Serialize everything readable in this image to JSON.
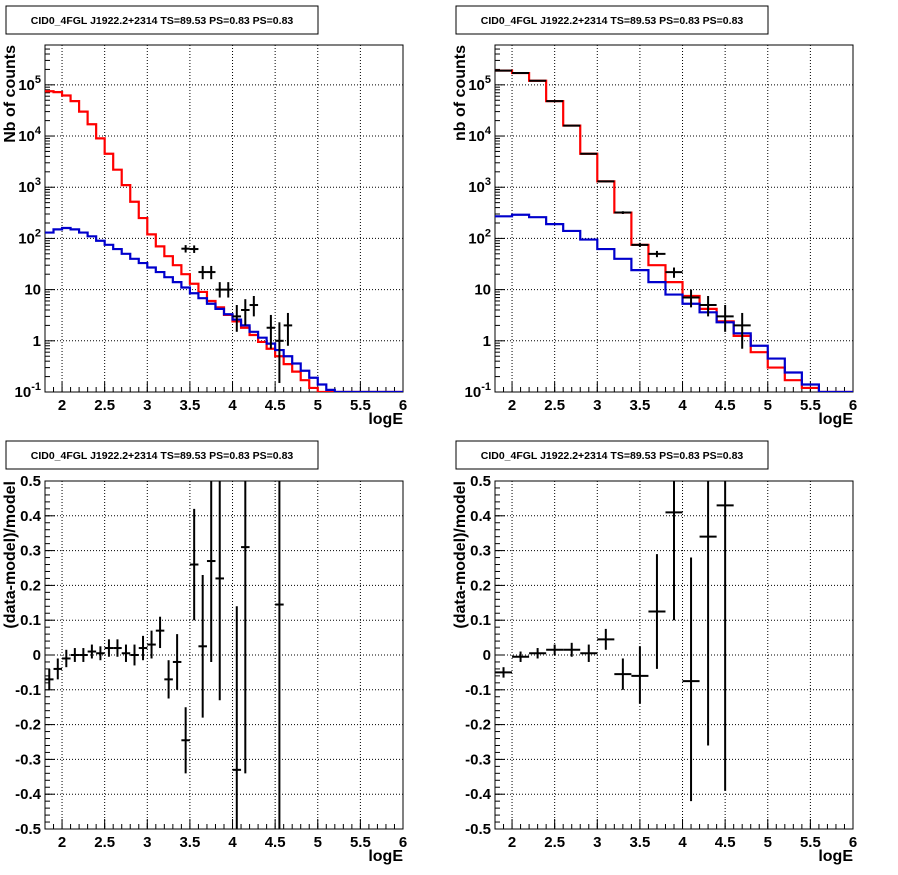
{
  "chart_data": [
    {
      "type": "histogram-errorbar",
      "title": "CID0_4FGL J1922.2+2314 TS=89.53 PS=0.83 PS=0.83",
      "xlabel": "logE",
      "ylabel": "Nb of counts",
      "log_y": true,
      "xlim": [
        1.8,
        6.0
      ],
      "ylim": [
        0.1,
        600000
      ],
      "xticks": [
        "2",
        "2.5",
        "3",
        "3.5",
        "4",
        "4.5",
        "5",
        "5.5",
        "6"
      ],
      "yticks": [
        "10^-1",
        "1",
        "10",
        "10^2",
        "10^3",
        "10^4",
        "10^5"
      ],
      "grid": true,
      "bin_edges": [
        1.8,
        1.9,
        2.0,
        2.1,
        2.2,
        2.3,
        2.4,
        2.5,
        2.6,
        2.7,
        2.8,
        2.9,
        3.0,
        3.1,
        3.2,
        3.3,
        3.4,
        3.5,
        3.6,
        3.7,
        3.8,
        3.9,
        4.0,
        4.1,
        4.2,
        4.3,
        4.4,
        4.5,
        4.6,
        4.7,
        4.8,
        4.9,
        5.0,
        5.1,
        5.2,
        5.3,
        5.4,
        5.5,
        5.6,
        5.7,
        5.8,
        5.9,
        6.0
      ],
      "series": [
        {
          "color": "#ff0000",
          "style": "step",
          "values": [
            75000,
            72000,
            62000,
            48000,
            30000,
            17000,
            9000,
            4500,
            2200,
            1100,
            520,
            250,
            120,
            70,
            45,
            30,
            20,
            13,
            9,
            6,
            4.5,
            3.2,
            2.4,
            1.8,
            1.3,
            0.95,
            0.7,
            0.5,
            0.35,
            0.25,
            0.17,
            0.12,
            0.1,
            0.1,
            0.1,
            0.1,
            0.1,
            0.1,
            0.1,
            0.1,
            0.1,
            0.1
          ]
        },
        {
          "color": "#0000cc",
          "style": "step",
          "values": [
            130,
            150,
            160,
            150,
            130,
            110,
            90,
            75,
            62,
            50,
            40,
            33,
            27,
            22,
            17.5,
            14,
            11,
            8.5,
            6.8,
            5.3,
            4.2,
            3.3,
            2.6,
            2,
            1.5,
            1.15,
            0.88,
            0.66,
            0.5,
            0.36,
            0.26,
            0.19,
            0.14,
            0.11,
            0.1,
            0.1,
            0.1,
            0.1,
            0.1,
            0.1,
            0.1,
            0.1
          ]
        }
      ],
      "points": [
        {
          "x": 3.45,
          "y": 63,
          "ylo": 53,
          "yhi": 74,
          "xerr": 0.05
        },
        {
          "x": 3.55,
          "y": 62,
          "ylo": 52,
          "yhi": 73,
          "xerr": 0.05
        },
        {
          "x": 3.65,
          "y": 22,
          "ylo": 16,
          "yhi": 29,
          "xerr": 0.05
        },
        {
          "x": 3.75,
          "y": 22,
          "ylo": 16,
          "yhi": 29,
          "xerr": 0.05
        },
        {
          "x": 3.85,
          "y": 10,
          "ylo": 7,
          "yhi": 14,
          "xerr": 0.05
        },
        {
          "x": 3.95,
          "y": 10,
          "ylo": 7,
          "yhi": 14,
          "xerr": 0.05
        },
        {
          "x": 4.05,
          "y": 3,
          "ylo": 1.5,
          "yhi": 5,
          "xerr": 0.05
        },
        {
          "x": 4.15,
          "y": 4,
          "ylo": 2,
          "yhi": 6.5,
          "xerr": 0.05
        },
        {
          "x": 4.25,
          "y": 5,
          "ylo": 3,
          "yhi": 7.5,
          "xerr": 0.05
        },
        {
          "x": 4.45,
          "y": 1.8,
          "ylo": 0.7,
          "yhi": 3.2,
          "xerr": 0.05
        },
        {
          "x": 4.55,
          "y": 1,
          "ylo": 0.15,
          "yhi": 2.3,
          "xerr": 0.05
        },
        {
          "x": 4.65,
          "y": 2,
          "ylo": 0.8,
          "yhi": 3.5,
          "xerr": 0.05
        }
      ]
    },
    {
      "type": "histogram-errorbar",
      "title": "CID0_4FGL J1922.2+2314 TS=89.53 PS=0.83 PS=0.83",
      "xlabel": "logE",
      "ylabel": "nb of counts",
      "log_y": true,
      "xlim": [
        1.8,
        6.0
      ],
      "ylim": [
        0.1,
        600000
      ],
      "xticks": [
        "2",
        "2.5",
        "3",
        "3.5",
        "4",
        "4.5",
        "5",
        "5.5",
        "6"
      ],
      "yticks": [
        "10^-1",
        "1",
        "10",
        "10^2",
        "10^3",
        "10^4",
        "10^5"
      ],
      "grid": true,
      "bin_edges": [
        1.8,
        2.0,
        2.2,
        2.4,
        2.6,
        2.8,
        3.0,
        3.2,
        3.4,
        3.6,
        3.8,
        4.0,
        4.2,
        4.4,
        4.6,
        4.8,
        5.0,
        5.2,
        5.4,
        5.6,
        5.8,
        6.0
      ],
      "series": [
        {
          "color": "#ff0000",
          "style": "step",
          "values": [
            190000,
            170000,
            120000,
            48000,
            16000,
            4500,
            1300,
            320,
            75,
            30,
            14,
            7.5,
            4.2,
            2.4,
            1.25,
            0.6,
            0.3,
            0.17,
            0.12,
            0.1,
            0.1
          ]
        },
        {
          "color": "#0000cc",
          "style": "step",
          "values": [
            270,
            290,
            260,
            190,
            140,
            95,
            62,
            40,
            24,
            14,
            8,
            5.3,
            3.6,
            2.3,
            1.4,
            0.8,
            0.45,
            0.24,
            0.14,
            0.1,
            0.1
          ]
        }
      ],
      "points": [
        {
          "x": 1.9,
          "y": 190000,
          "ylo": 188000,
          "yhi": 192000,
          "xerr": 0.1
        },
        {
          "x": 2.1,
          "y": 170000,
          "ylo": 168000,
          "yhi": 172000,
          "xerr": 0.1
        },
        {
          "x": 2.3,
          "y": 120000,
          "ylo": 118000,
          "yhi": 122000,
          "xerr": 0.1
        },
        {
          "x": 2.5,
          "y": 48000,
          "ylo": 47500,
          "yhi": 48500,
          "xerr": 0.1
        },
        {
          "x": 2.7,
          "y": 16000,
          "ylo": 15800,
          "yhi": 16200,
          "xerr": 0.1
        },
        {
          "x": 2.9,
          "y": 4500,
          "ylo": 4400,
          "yhi": 4600,
          "xerr": 0.1
        },
        {
          "x": 3.1,
          "y": 1300,
          "ylo": 1250,
          "yhi": 1350,
          "xerr": 0.1
        },
        {
          "x": 3.3,
          "y": 320,
          "ylo": 300,
          "yhi": 340,
          "xerr": 0.1
        },
        {
          "x": 3.5,
          "y": 75,
          "ylo": 68,
          "yhi": 82,
          "xerr": 0.1
        },
        {
          "x": 3.7,
          "y": 50,
          "ylo": 43,
          "yhi": 57,
          "xerr": 0.1
        },
        {
          "x": 3.9,
          "y": 22,
          "ylo": 17,
          "yhi": 27,
          "xerr": 0.1
        },
        {
          "x": 4.1,
          "y": 7,
          "ylo": 4.5,
          "yhi": 10,
          "xerr": 0.1
        },
        {
          "x": 4.3,
          "y": 5,
          "ylo": 3,
          "yhi": 7.5,
          "xerr": 0.1
        },
        {
          "x": 4.5,
          "y": 3,
          "ylo": 1.5,
          "yhi": 5,
          "xerr": 0.1
        },
        {
          "x": 4.7,
          "y": 2,
          "ylo": 0.7,
          "yhi": 3.5,
          "xerr": 0.1
        }
      ]
    },
    {
      "type": "scatter-errorbar",
      "title": "CID0_4FGL J1922.2+2314 TS=89.53 PS=0.83 PS=0.83",
      "xlabel": "logE",
      "ylabel": "(data-model)/model",
      "log_y": false,
      "xlim": [
        1.8,
        6.0
      ],
      "ylim": [
        -0.5,
        0.5
      ],
      "xticks": [
        "2",
        "2.5",
        "3",
        "3.5",
        "4",
        "4.5",
        "5",
        "5.5",
        "6"
      ],
      "yticks": [
        "-0.5",
        "-0.4",
        "-0.3",
        "-0.2",
        "-0.1",
        "0",
        "0.1",
        "0.2",
        "0.3",
        "0.4",
        "0.5"
      ],
      "grid": true,
      "points": [
        {
          "x": 1.85,
          "y": -0.07,
          "ylo": -0.1,
          "yhi": -0.04,
          "xerr": 0.05
        },
        {
          "x": 1.95,
          "y": -0.04,
          "ylo": -0.07,
          "yhi": -0.01,
          "xerr": 0.05
        },
        {
          "x": 2.05,
          "y": -0.01,
          "ylo": -0.035,
          "yhi": 0.015,
          "xerr": 0.05
        },
        {
          "x": 2.15,
          "y": 0.0,
          "ylo": -0.02,
          "yhi": 0.02,
          "xerr": 0.05
        },
        {
          "x": 2.25,
          "y": 0.0,
          "ylo": -0.02,
          "yhi": 0.02,
          "xerr": 0.05
        },
        {
          "x": 2.35,
          "y": 0.01,
          "ylo": -0.01,
          "yhi": 0.03,
          "xerr": 0.05
        },
        {
          "x": 2.45,
          "y": 0.005,
          "ylo": -0.015,
          "yhi": 0.025,
          "xerr": 0.05
        },
        {
          "x": 2.55,
          "y": 0.02,
          "ylo": -0.005,
          "yhi": 0.045,
          "xerr": 0.05
        },
        {
          "x": 2.65,
          "y": 0.02,
          "ylo": -0.005,
          "yhi": 0.045,
          "xerr": 0.05
        },
        {
          "x": 2.75,
          "y": 0.005,
          "ylo": -0.02,
          "yhi": 0.03,
          "xerr": 0.05
        },
        {
          "x": 2.85,
          "y": 0.0,
          "ylo": -0.03,
          "yhi": 0.03,
          "xerr": 0.05
        },
        {
          "x": 2.95,
          "y": 0.02,
          "ylo": -0.015,
          "yhi": 0.055,
          "xerr": 0.05
        },
        {
          "x": 3.05,
          "y": 0.03,
          "ylo": -0.01,
          "yhi": 0.07,
          "xerr": 0.05
        },
        {
          "x": 3.15,
          "y": 0.07,
          "ylo": 0.02,
          "yhi": 0.11,
          "xerr": 0.05
        },
        {
          "x": 3.25,
          "y": -0.07,
          "ylo": -0.125,
          "yhi": -0.015,
          "xerr": 0.05
        },
        {
          "x": 3.35,
          "y": -0.02,
          "ylo": -0.1,
          "yhi": 0.06,
          "xerr": 0.05
        },
        {
          "x": 3.45,
          "y": -0.245,
          "ylo": -0.34,
          "yhi": -0.15,
          "xerr": 0.05
        },
        {
          "x": 3.55,
          "y": 0.26,
          "ylo": 0.1,
          "yhi": 0.42,
          "xerr": 0.05
        },
        {
          "x": 3.65,
          "y": 0.025,
          "ylo": -0.18,
          "yhi": 0.23,
          "xerr": 0.05
        },
        {
          "x": 3.75,
          "y": 0.27,
          "ylo": -0.02,
          "yhi": 0.56,
          "xerr": 0.05
        },
        {
          "x": 3.85,
          "y": 0.22,
          "ylo": -0.13,
          "yhi": 0.57,
          "xerr": 0.05
        },
        {
          "x": 4.05,
          "y": -0.33,
          "ylo": -0.8,
          "yhi": 0.14,
          "xerr": 0.05
        },
        {
          "x": 4.15,
          "y": 0.31,
          "ylo": -0.34,
          "yhi": 0.96,
          "xerr": 0.05
        },
        {
          "x": 4.55,
          "y": 0.145,
          "ylo": -0.8,
          "yhi": 1.1,
          "xerr": 0.05
        }
      ]
    },
    {
      "type": "scatter-errorbar",
      "title": "CID0_4FGL J1922.2+2314 TS=89.53 PS=0.83 PS=0.83",
      "xlabel": "logE",
      "ylabel": "(data-model)/model",
      "log_y": false,
      "xlim": [
        1.8,
        6.0
      ],
      "ylim": [
        -0.5,
        0.5
      ],
      "xticks": [
        "2",
        "2.5",
        "3",
        "3.5",
        "4",
        "4.5",
        "5",
        "5.5",
        "6"
      ],
      "yticks": [
        "-0.5",
        "-0.4",
        "-0.3",
        "-0.2",
        "-0.1",
        "0",
        "0.1",
        "0.2",
        "0.3",
        "0.4",
        "0.5"
      ],
      "grid": true,
      "points": [
        {
          "x": 1.9,
          "y": -0.05,
          "ylo": -0.065,
          "yhi": -0.035,
          "xerr": 0.1
        },
        {
          "x": 2.1,
          "y": -0.005,
          "ylo": -0.02,
          "yhi": 0.01,
          "xerr": 0.1
        },
        {
          "x": 2.3,
          "y": 0.005,
          "ylo": -0.01,
          "yhi": 0.02,
          "xerr": 0.1
        },
        {
          "x": 2.5,
          "y": 0.015,
          "ylo": 0.0,
          "yhi": 0.03,
          "xerr": 0.1
        },
        {
          "x": 2.7,
          "y": 0.015,
          "ylo": -0.005,
          "yhi": 0.035,
          "xerr": 0.1
        },
        {
          "x": 2.9,
          "y": 0.005,
          "ylo": -0.02,
          "yhi": 0.03,
          "xerr": 0.1
        },
        {
          "x": 3.1,
          "y": 0.045,
          "ylo": 0.015,
          "yhi": 0.075,
          "xerr": 0.1
        },
        {
          "x": 3.3,
          "y": -0.055,
          "ylo": -0.1,
          "yhi": -0.01,
          "xerr": 0.1
        },
        {
          "x": 3.5,
          "y": -0.06,
          "ylo": -0.14,
          "yhi": 0.025,
          "xerr": 0.1
        },
        {
          "x": 3.7,
          "y": 0.125,
          "ylo": -0.04,
          "yhi": 0.29,
          "xerr": 0.1
        },
        {
          "x": 3.9,
          "y": 0.41,
          "ylo": 0.1,
          "yhi": 0.72,
          "xerr": 0.1
        },
        {
          "x": 4.1,
          "y": -0.075,
          "ylo": -0.42,
          "yhi": 0.28,
          "xerr": 0.1
        },
        {
          "x": 4.3,
          "y": 0.34,
          "ylo": -0.26,
          "yhi": 0.94,
          "xerr": 0.1
        },
        {
          "x": 4.5,
          "y": 0.43,
          "ylo": -0.39,
          "yhi": 1.25,
          "xerr": 0.1
        }
      ]
    }
  ]
}
